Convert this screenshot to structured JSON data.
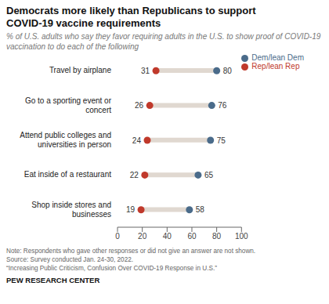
{
  "chart_data": {
    "type": "dumbbell",
    "title": "Democrats more likely than Republicans to support\nCOVID-19 vaccine requirements",
    "subtitle": "% of U.S. adults who say they favor requiring adults in the U.S. to show proof of COVID-19 vaccination to do each of the following",
    "categories": [
      "Travel by airplane",
      "Go to a sporting event or\nconcert",
      "Attend public colleges and\nuniversities in person",
      "Eat inside of a restaurant",
      "Shop inside stores and\nbusinesses"
    ],
    "series": [
      {
        "name": "Rep/lean Rep",
        "color": "#c0392b",
        "values": [
          31,
          26,
          24,
          22,
          19
        ]
      },
      {
        "name": "Dem/lean Dem",
        "color": "#4a6b8a",
        "values": [
          80,
          76,
          75,
          65,
          58
        ]
      }
    ],
    "xlim": [
      0,
      100
    ],
    "xticks": [
      0,
      20,
      40,
      60,
      80,
      100
    ],
    "data_labels": true,
    "legend": "upper right",
    "notes": [
      "Note: Respondents who gave other responses or did not give an answer are not shown.",
      "Source: Survey conducted Jan. 24-30, 2022.",
      "“Increasing Public Criticism, Confusion Over COVID-19 Response in U.S.”"
    ],
    "footer": "PEW RESEARCH CENTER"
  }
}
